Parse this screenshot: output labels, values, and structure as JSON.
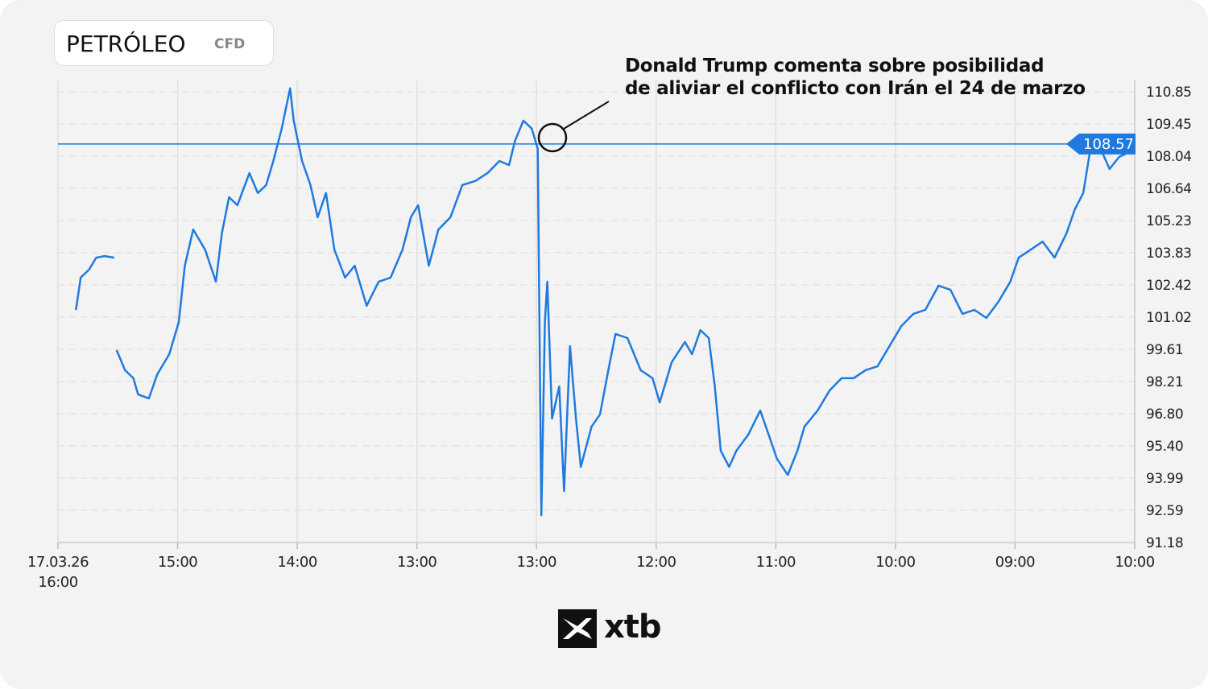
{
  "chart_data": {
    "type": "line",
    "title": "PETRÓLEO",
    "subtitle": "CFD",
    "annotation": "Donald Trump comenta sobre posibilidad\nde aliviar el conflicto con Irán el 24 de marzo",
    "last_price": 108.57,
    "logo_text": "xtb",
    "grid": true,
    "color": "#1f7ae0",
    "xlim": [
      0,
      9
    ],
    "xticks": [
      {
        "value": 0,
        "label": "17.03.26\n16:00"
      },
      {
        "value": 1,
        "label": "15:00"
      },
      {
        "value": 2,
        "label": "14:00"
      },
      {
        "value": 3,
        "label": "13:00"
      },
      {
        "value": 4,
        "label": "13:00"
      },
      {
        "value": 5,
        "label": "12:00"
      },
      {
        "value": 6,
        "label": "11:00"
      },
      {
        "value": 7,
        "label": "10:00"
      },
      {
        "value": 8,
        "label": "09:00"
      },
      {
        "value": 9,
        "label": "10:00"
      }
    ],
    "ylim": [
      91.18,
      110.85
    ],
    "yticks": [
      91.18,
      92.59,
      93.99,
      95.4,
      96.8,
      98.21,
      99.61,
      101.02,
      102.42,
      103.83,
      105.23,
      106.64,
      108.04,
      109.45,
      110.85
    ],
    "ytick_labels": [
      "91.18",
      "92.59",
      "93.99",
      "95.40",
      "96.80",
      "98.21",
      "99.61",
      "101.02",
      "102.42",
      "103.83",
      "105.23",
      "106.64",
      "108.04",
      "109.45",
      "110.85"
    ],
    "x": [
      0.15,
      0.19,
      0.26,
      0.32,
      0.39,
      0.47,
      0.48,
      0.49,
      0.56,
      0.63,
      0.67,
      0.76,
      0.83,
      0.93,
      1.01,
      1.06,
      1.13,
      1.23,
      1.32,
      1.37,
      1.43,
      1.5,
      1.6,
      1.67,
      1.74,
      1.8,
      1.87,
      1.94,
      1.97,
      2.04,
      2.11,
      2.17,
      2.24,
      2.31,
      2.4,
      2.48,
      2.58,
      2.68,
      2.78,
      2.88,
      2.95,
      3.01,
      3.1,
      3.18,
      3.28,
      3.38,
      3.49,
      3.59,
      3.69,
      3.77,
      3.82,
      3.89,
      3.96,
      4.01,
      4.04,
      4.07,
      4.09,
      4.13,
      4.19,
      4.23,
      4.28,
      4.33,
      4.37,
      4.46,
      4.53,
      4.6,
      4.66,
      4.76,
      4.87,
      4.97,
      5.03,
      5.13,
      5.24,
      5.3,
      5.37,
      5.44,
      5.49,
      5.54,
      5.61,
      5.67,
      5.77,
      5.87,
      5.94,
      6.01,
      6.1,
      6.18,
      6.24,
      6.35,
      6.45,
      6.55,
      6.65,
      6.75,
      6.85,
      6.95,
      7.05,
      7.15,
      7.25,
      7.36,
      7.46,
      7.56,
      7.66,
      7.76,
      7.86,
      7.96,
      8.03,
      8.13,
      8.23,
      8.33,
      8.43,
      8.5,
      8.57,
      8.63,
      8.7,
      8.79,
      8.87,
      8.94
    ],
    "values": [
      101.33,
      102.74,
      103.09,
      103.61,
      103.68,
      103.61,
      null,
      99.58,
      98.7,
      98.35,
      97.64,
      97.47,
      98.52,
      99.4,
      100.8,
      103.26,
      104.84,
      103.96,
      102.56,
      104.67,
      106.25,
      105.9,
      107.3,
      106.43,
      106.78,
      107.83,
      109.24,
      111.0,
      109.59,
      107.83,
      106.78,
      105.37,
      106.43,
      103.96,
      102.74,
      103.26,
      101.51,
      102.56,
      102.74,
      103.96,
      105.37,
      105.9,
      103.26,
      104.84,
      105.37,
      106.78,
      106.96,
      107.3,
      107.83,
      107.65,
      108.71,
      109.59,
      109.24,
      108.36,
      92.37,
      100.8,
      102.56,
      96.59,
      97.99,
      93.43,
      99.75,
      96.59,
      94.48,
      96.24,
      96.77,
      98.7,
      100.28,
      100.1,
      98.7,
      98.35,
      97.29,
      99.05,
      99.93,
      99.4,
      100.45,
      100.1,
      97.99,
      95.18,
      94.48,
      95.18,
      95.89,
      96.94,
      95.89,
      94.83,
      94.13,
      95.18,
      96.24,
      96.94,
      97.82,
      98.35,
      98.35,
      98.7,
      98.87,
      99.75,
      100.63,
      101.16,
      101.33,
      102.39,
      102.21,
      101.16,
      101.33,
      100.98,
      101.68,
      102.56,
      103.61,
      103.96,
      104.31,
      103.61,
      104.67,
      105.72,
      106.43,
      108.36,
      108.53,
      107.48,
      108.01,
      108.18
    ]
  }
}
